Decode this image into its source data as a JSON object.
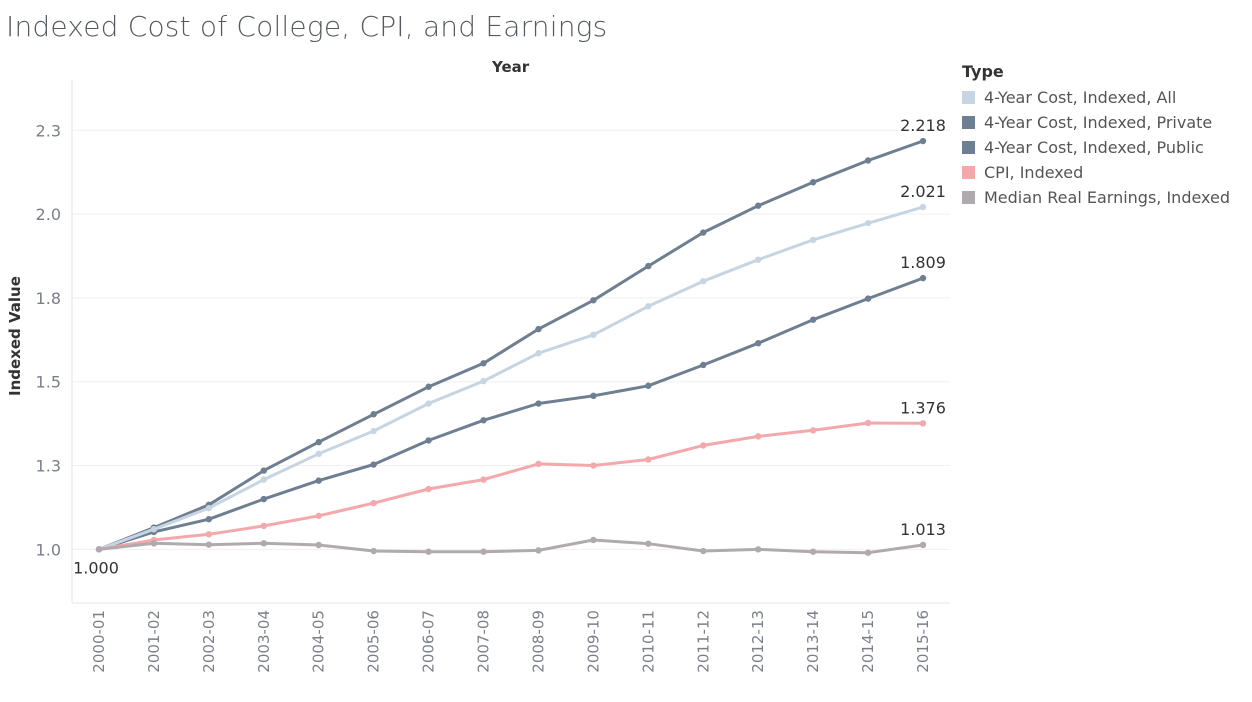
{
  "chart_data": {
    "type": "line",
    "title": "Indexed Cost of College, CPI, and Earnings",
    "column_header": "Year",
    "ylabel": "Indexed Value",
    "ylim": [
      0.84,
      2.4
    ],
    "y_ticks": [
      {
        "value": 1.0,
        "label": "1.0"
      },
      {
        "value": 1.25,
        "label": "1.3"
      },
      {
        "value": 1.5,
        "label": "1.5"
      },
      {
        "value": 1.75,
        "label": "1.8"
      },
      {
        "value": 2.0,
        "label": "2.0"
      },
      {
        "value": 2.25,
        "label": "2.3"
      }
    ],
    "grid": true,
    "legend_position": "right",
    "legend_title": "Type",
    "categories": [
      "2000-01",
      "2001-02",
      "2002-03",
      "2003-04",
      "2004-05",
      "2005-06",
      "2006-07",
      "2007-08",
      "2008-09",
      "2009-10",
      "2010-11",
      "2011-12",
      "2012-13",
      "2013-14",
      "2014-15",
      "2015-16"
    ],
    "series": [
      {
        "name": "4-Year Cost, Indexed, All",
        "color": "#c6d5e1",
        "values": [
          1.0,
          1.06,
          1.123,
          1.208,
          1.285,
          1.353,
          1.435,
          1.502,
          1.585,
          1.64,
          1.725,
          1.8,
          1.864,
          1.923,
          1.973,
          2.021
        ],
        "end_label": "2.021"
      },
      {
        "name": "4-Year Cost, Indexed, Private",
        "color": "#6f7f92",
        "values": [
          1.0,
          1.065,
          1.133,
          1.235,
          1.32,
          1.403,
          1.485,
          1.555,
          1.657,
          1.743,
          1.845,
          1.945,
          2.025,
          2.095,
          2.16,
          2.218
        ],
        "end_label": "2.218"
      },
      {
        "name": "4-Year Cost, Indexed, Public",
        "color": "#6f7f92",
        "values": [
          1.0,
          1.052,
          1.09,
          1.15,
          1.205,
          1.253,
          1.325,
          1.385,
          1.435,
          1.458,
          1.488,
          1.55,
          1.615,
          1.685,
          1.748,
          1.809
        ],
        "end_label": "1.809"
      },
      {
        "name": "CPI, Indexed",
        "color": "#f4a8ab",
        "values": [
          1.0,
          1.028,
          1.045,
          1.07,
          1.1,
          1.138,
          1.18,
          1.208,
          1.255,
          1.25,
          1.268,
          1.31,
          1.337,
          1.355,
          1.377,
          1.376
        ],
        "start_label": "1.000",
        "end_label": "1.376"
      },
      {
        "name": "Median Real Earnings, Indexed",
        "color": "#b0aaae",
        "values": [
          1.0,
          1.018,
          1.014,
          1.018,
          1.013,
          0.995,
          0.993,
          0.993,
          0.997,
          1.028,
          1.017,
          0.995,
          1.0,
          0.993,
          0.99,
          1.013
        ],
        "end_label": "1.013"
      }
    ]
  }
}
